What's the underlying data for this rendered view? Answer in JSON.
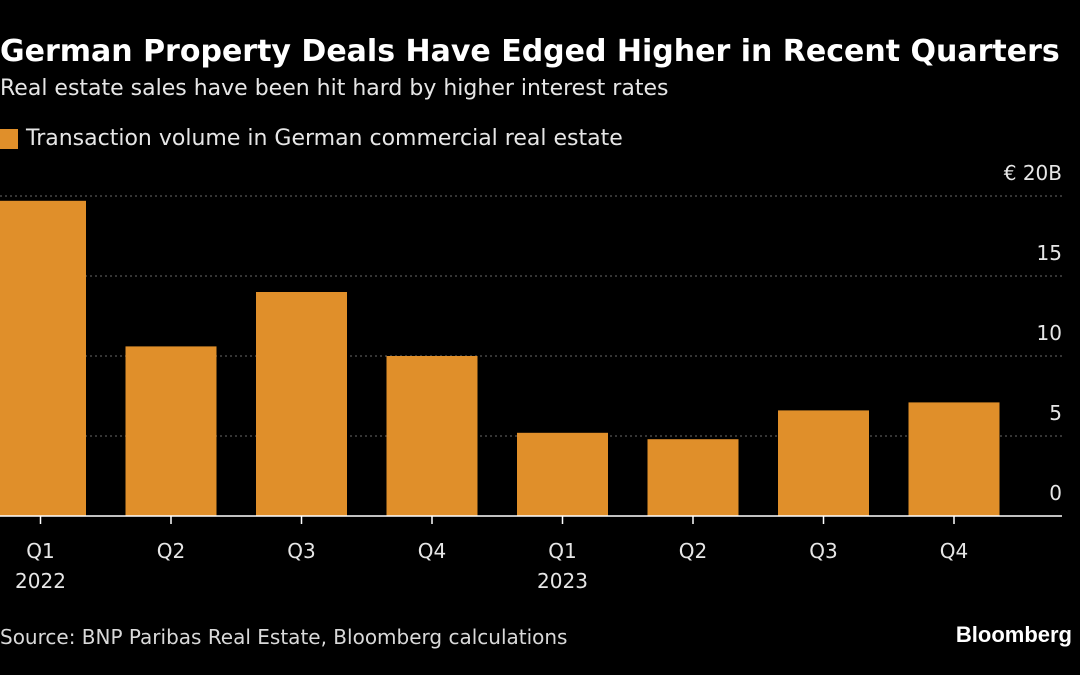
{
  "chart_data": {
    "type": "bar",
    "title": "German Property Deals Have Edged Higher in Recent Quarters",
    "subtitle": "Real estate sales have been hit hard by higher interest rates",
    "legend": [
      {
        "label": "Transaction volume in German commercial real estate",
        "color": "#e08f2a"
      }
    ],
    "categories": [
      "Q1",
      "Q2",
      "Q3",
      "Q4",
      "Q1",
      "Q2",
      "Q3",
      "Q4"
    ],
    "year_labels": [
      "2022",
      "",
      "",
      "",
      "2023",
      "",
      "",
      ""
    ],
    "values": [
      19.7,
      10.6,
      14.0,
      10.0,
      5.2,
      4.8,
      6.6,
      7.1
    ],
    "unit": "€ B",
    "ylim": [
      0,
      20
    ],
    "yticks": [
      {
        "value": 20,
        "label": "€ 20B"
      },
      {
        "value": 15,
        "label": "15"
      },
      {
        "value": 10,
        "label": "10"
      },
      {
        "value": 5,
        "label": "5"
      },
      {
        "value": 0,
        "label": "0"
      }
    ],
    "xlabel": "",
    "ylabel": "",
    "grid": true
  },
  "footer": {
    "source": "Source: BNP Paribas Real Estate, Bloomberg calculations",
    "brand": "Bloomberg"
  },
  "colors": {
    "bar": "#e08f2a",
    "grid": "#6a6a6a",
    "axis": "#ffffff",
    "background": "#000000"
  }
}
